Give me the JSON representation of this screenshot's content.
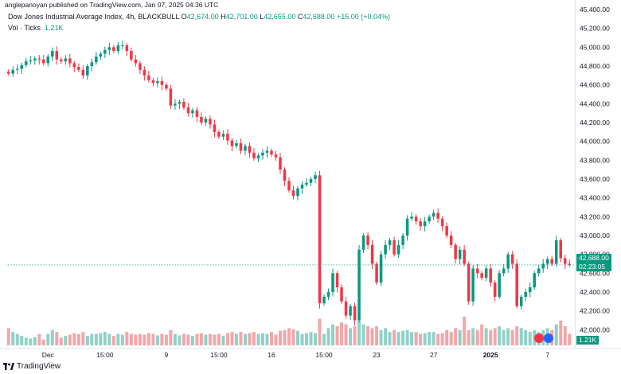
{
  "publisher": "anglepanoyan published on TradingView.com, Jan 07, 2025 04:36 UTC",
  "title": "Dow Jones Industrial Average Index, 4h, BLACKBULL",
  "ohlc": {
    "o_label": "O",
    "o": "42,674.00",
    "h_label": "H",
    "h": "42,701.00",
    "l_label": "L",
    "l": "42,655.00",
    "c_label": "C",
    "c": "42,688.00",
    "chg": "+15.00 (+0.04%)"
  },
  "volume_label": "Vol · Ticks",
  "volume_value": "1.21K",
  "price_tag": {
    "price": "42,688.00",
    "countdown": "02:23:05"
  },
  "volume_tag": "1.21K",
  "logo_text": "TradingView",
  "colors": {
    "up": "#089981",
    "down": "#f23645",
    "up_vol": "#8fd1c7",
    "down_vol": "#f5a5a8",
    "current": "#089981"
  },
  "chart_data": {
    "type": "candlestick",
    "title": "Dow Jones Industrial Average Index, 4h, BLACKBULL",
    "y_range": [
      41800,
      45400
    ],
    "y_ticks": [
      "45,400.00",
      "45,200.00",
      "45,000.00",
      "44,800.00",
      "44,600.00",
      "44,400.00",
      "44,200.00",
      "44,000.00",
      "43,800.00",
      "43,600.00",
      "43,400.00",
      "43,200.00",
      "43,000.00",
      "42,800.00",
      "42,600.00",
      "42,400.00",
      "42,200.00",
      "42,000.00"
    ],
    "y_tick_values": [
      45400,
      45200,
      45000,
      44800,
      44600,
      44400,
      44200,
      44000,
      43800,
      43600,
      43400,
      43200,
      43000,
      42800,
      42600,
      42400,
      42200,
      42000
    ],
    "x_labels": [
      "Dec",
      "15:00",
      "9",
      "15:00",
      "16",
      "15:00",
      "23",
      "27",
      "2025",
      "7"
    ],
    "x_label_bar_index": [
      9,
      22,
      36,
      48,
      60,
      72,
      84,
      97,
      110,
      123
    ],
    "current_price": 42688,
    "candles": [
      {
        "c": 44720,
        "v": 0.45
      },
      {
        "c": 44760,
        "v": 0.35
      },
      {
        "c": 44770,
        "v": 0.3
      },
      {
        "c": 44810,
        "v": 0.25
      },
      {
        "c": 44850,
        "v": 0.2
      },
      {
        "c": 44860,
        "v": 0.18
      },
      {
        "c": 44880,
        "v": 0.22
      },
      {
        "c": 44870,
        "v": 0.3
      },
      {
        "c": 44830,
        "v": 0.15
      },
      {
        "c": 44900,
        "v": 0.3
      },
      {
        "c": 44960,
        "v": 0.4
      },
      {
        "c": 44870,
        "v": 0.35
      },
      {
        "c": 44850,
        "v": 0.2
      },
      {
        "c": 44880,
        "v": 0.25
      },
      {
        "c": 44830,
        "v": 0.28
      },
      {
        "c": 44790,
        "v": 0.32
      },
      {
        "c": 44760,
        "v": 0.3
      },
      {
        "c": 44700,
        "v": 0.35
      },
      {
        "c": 44800,
        "v": 0.25
      },
      {
        "c": 44840,
        "v": 0.3
      },
      {
        "c": 44900,
        "v": 0.3
      },
      {
        "c": 44930,
        "v": 0.32
      },
      {
        "c": 44970,
        "v": 0.35
      },
      {
        "c": 45000,
        "v": 0.3
      },
      {
        "c": 44960,
        "v": 0.25
      },
      {
        "c": 45020,
        "v": 0.3
      },
      {
        "c": 45020,
        "v": 0.28
      },
      {
        "c": 44960,
        "v": 0.35
      },
      {
        "c": 44870,
        "v": 0.3
      },
      {
        "c": 44830,
        "v": 0.28
      },
      {
        "c": 44760,
        "v": 0.3
      },
      {
        "c": 44700,
        "v": 0.28
      },
      {
        "c": 44650,
        "v": 0.32
      },
      {
        "c": 44620,
        "v": 0.3
      },
      {
        "c": 44640,
        "v": 0.26
      },
      {
        "c": 44600,
        "v": 0.3
      },
      {
        "c": 44560,
        "v": 0.28
      },
      {
        "c": 44380,
        "v": 0.4
      },
      {
        "c": 44400,
        "v": 0.3
      },
      {
        "c": 44420,
        "v": 0.26
      },
      {
        "c": 44360,
        "v": 0.3
      },
      {
        "c": 44300,
        "v": 0.28
      },
      {
        "c": 44330,
        "v": 0.25
      },
      {
        "c": 44260,
        "v": 0.3
      },
      {
        "c": 44200,
        "v": 0.32
      },
      {
        "c": 44240,
        "v": 0.28
      },
      {
        "c": 44180,
        "v": 0.3
      },
      {
        "c": 44100,
        "v": 0.28
      },
      {
        "c": 44050,
        "v": 0.3
      },
      {
        "c": 44080,
        "v": 0.25
      },
      {
        "c": 44010,
        "v": 0.32
      },
      {
        "c": 43950,
        "v": 0.35
      },
      {
        "c": 43980,
        "v": 0.3
      },
      {
        "c": 43900,
        "v": 0.35
      },
      {
        "c": 43950,
        "v": 0.3
      },
      {
        "c": 43880,
        "v": 0.32
      },
      {
        "c": 43820,
        "v": 0.35
      },
      {
        "c": 43850,
        "v": 0.3
      },
      {
        "c": 43880,
        "v": 0.32
      },
      {
        "c": 43900,
        "v": 0.3
      },
      {
        "c": 43860,
        "v": 0.35
      },
      {
        "c": 43830,
        "v": 0.28
      },
      {
        "c": 43700,
        "v": 0.38
      },
      {
        "c": 43580,
        "v": 0.4
      },
      {
        "c": 43480,
        "v": 0.45
      },
      {
        "c": 43420,
        "v": 0.42
      },
      {
        "c": 43500,
        "v": 0.38
      },
      {
        "c": 43540,
        "v": 0.3
      },
      {
        "c": 43560,
        "v": 0.32
      },
      {
        "c": 43600,
        "v": 0.35
      },
      {
        "c": 43640,
        "v": 0.32
      },
      {
        "c": 42280,
        "v": 0.7
      },
      {
        "c": 42350,
        "v": 0.3
      },
      {
        "c": 42400,
        "v": 0.45
      },
      {
        "c": 42600,
        "v": 0.55
      },
      {
        "c": 42450,
        "v": 0.5
      },
      {
        "c": 42300,
        "v": 0.6
      },
      {
        "c": 42150,
        "v": 0.55
      },
      {
        "c": 42250,
        "v": 0.45
      },
      {
        "c": 42100,
        "v": 0.5
      },
      {
        "c": 42850,
        "v": 0.65
      },
      {
        "c": 43000,
        "v": 0.55
      },
      {
        "c": 42900,
        "v": 0.5
      },
      {
        "c": 42700,
        "v": 0.45
      },
      {
        "c": 42500,
        "v": 0.5
      },
      {
        "c": 42800,
        "v": 0.4
      },
      {
        "c": 42900,
        "v": 0.45
      },
      {
        "c": 42950,
        "v": 0.35
      },
      {
        "c": 42800,
        "v": 0.4
      },
      {
        "c": 42900,
        "v": 0.35
      },
      {
        "c": 43000,
        "v": 0.38
      },
      {
        "c": 43180,
        "v": 0.4
      },
      {
        "c": 43200,
        "v": 0.35
      },
      {
        "c": 43150,
        "v": 0.35
      },
      {
        "c": 43100,
        "v": 0.3
      },
      {
        "c": 43150,
        "v": 0.32
      },
      {
        "c": 43200,
        "v": 0.35
      },
      {
        "c": 43240,
        "v": 0.35
      },
      {
        "c": 43180,
        "v": 0.3
      },
      {
        "c": 43100,
        "v": 0.32
      },
      {
        "c": 43000,
        "v": 0.4
      },
      {
        "c": 42900,
        "v": 0.35
      },
      {
        "c": 42750,
        "v": 0.45
      },
      {
        "c": 42850,
        "v": 0.4
      },
      {
        "c": 42700,
        "v": 0.75
      },
      {
        "c": 42300,
        "v": 0.4
      },
      {
        "c": 42650,
        "v": 0.45
      },
      {
        "c": 42600,
        "v": 0.4
      },
      {
        "c": 42550,
        "v": 0.55
      },
      {
        "c": 42650,
        "v": 0.45
      },
      {
        "c": 42500,
        "v": 0.4
      },
      {
        "c": 42350,
        "v": 0.45
      },
      {
        "c": 42600,
        "v": 0.5
      },
      {
        "c": 42650,
        "v": 0.4
      },
      {
        "c": 42800,
        "v": 0.45
      },
      {
        "c": 42700,
        "v": 0.4
      },
      {
        "c": 42250,
        "v": 0.5
      },
      {
        "c": 42350,
        "v": 0.45
      },
      {
        "c": 42400,
        "v": 0.4
      },
      {
        "c": 42450,
        "v": 0.35
      },
      {
        "c": 42600,
        "v": 0.4
      },
      {
        "c": 42650,
        "v": 0.35
      },
      {
        "c": 42700,
        "v": 0.4
      },
      {
        "c": 42750,
        "v": 0.45
      },
      {
        "c": 42700,
        "v": 0.4
      },
      {
        "c": 42950,
        "v": 0.55
      },
      {
        "c": 42760,
        "v": 0.65
      },
      {
        "c": 42700,
        "v": 0.5
      },
      {
        "c": 42688,
        "v": 0.3
      }
    ]
  }
}
